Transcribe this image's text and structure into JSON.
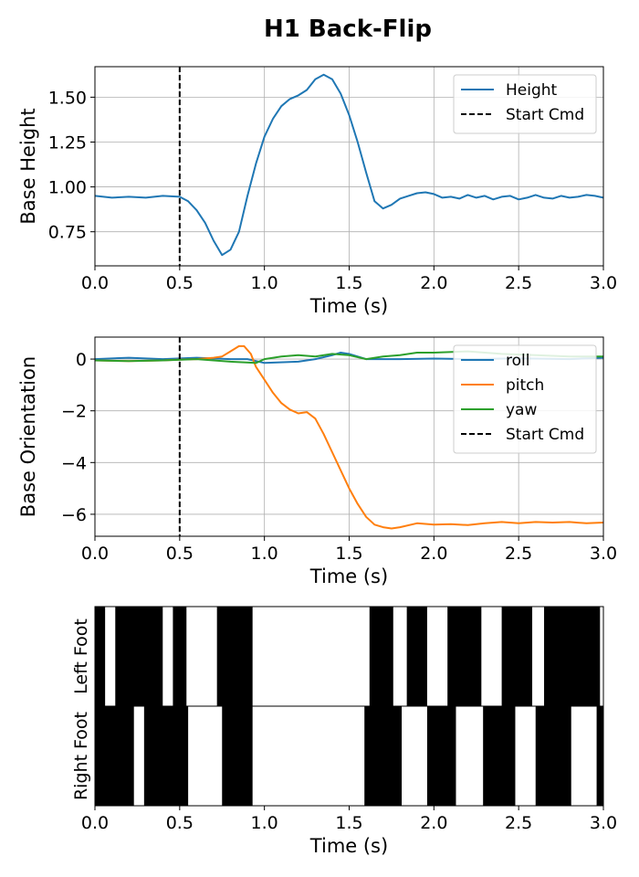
{
  "title": "H1 Back-Flip",
  "chart_data": [
    {
      "type": "line",
      "xlabel": "Time (s)",
      "ylabel": "Base Height",
      "xlim": [
        0,
        3.0
      ],
      "ylim": [
        0.56,
        1.67
      ],
      "xticks": [
        0.0,
        0.5,
        1.0,
        1.5,
        2.0,
        2.5,
        3.0
      ],
      "xtick_labels": [
        "0.0",
        "0.5",
        "1.0",
        "1.5",
        "2.0",
        "2.5",
        "3.0"
      ],
      "yticks": [
        0.75,
        1.0,
        1.25,
        1.5
      ],
      "ytick_labels": [
        "0.75",
        "1.00",
        "1.25",
        "1.50"
      ],
      "grid": true,
      "legend_position": "top-right",
      "series": [
        {
          "name": "Height",
          "color": "#1f77b4",
          "x": [
            0.0,
            0.1,
            0.2,
            0.3,
            0.4,
            0.5,
            0.55,
            0.6,
            0.65,
            0.7,
            0.75,
            0.8,
            0.85,
            0.9,
            0.95,
            1.0,
            1.05,
            1.1,
            1.15,
            1.2,
            1.25,
            1.3,
            1.35,
            1.4,
            1.45,
            1.5,
            1.55,
            1.6,
            1.65,
            1.7,
            1.75,
            1.8,
            1.85,
            1.9,
            1.95,
            2.0,
            2.05,
            2.1,
            2.15,
            2.2,
            2.25,
            2.3,
            2.35,
            2.4,
            2.45,
            2.5,
            2.55,
            2.6,
            2.65,
            2.7,
            2.75,
            2.8,
            2.85,
            2.9,
            2.95,
            3.0
          ],
          "values": [
            0.95,
            0.94,
            0.945,
            0.94,
            0.95,
            0.945,
            0.92,
            0.87,
            0.8,
            0.7,
            0.62,
            0.65,
            0.75,
            0.95,
            1.13,
            1.28,
            1.38,
            1.45,
            1.49,
            1.51,
            1.54,
            1.6,
            1.625,
            1.6,
            1.52,
            1.4,
            1.25,
            1.08,
            0.92,
            0.88,
            0.9,
            0.935,
            0.95,
            0.965,
            0.97,
            0.96,
            0.94,
            0.945,
            0.935,
            0.955,
            0.94,
            0.95,
            0.93,
            0.945,
            0.95,
            0.93,
            0.94,
            0.955,
            0.94,
            0.935,
            0.95,
            0.94,
            0.945,
            0.955,
            0.95,
            0.94
          ]
        },
        {
          "name": "Start Cmd",
          "color": "#000000",
          "style": "dashed-vertical",
          "x_position": 0.5
        }
      ]
    },
    {
      "type": "line",
      "xlabel": "Time (s)",
      "ylabel": "Base Orientation",
      "xlim": [
        0,
        3.0
      ],
      "ylim": [
        -6.85,
        0.85
      ],
      "xticks": [
        0.0,
        0.5,
        1.0,
        1.5,
        2.0,
        2.5,
        3.0
      ],
      "xtick_labels": [
        "0.0",
        "0.5",
        "1.0",
        "1.5",
        "2.0",
        "2.5",
        "3.0"
      ],
      "yticks": [
        -6,
        -4,
        -2,
        0
      ],
      "ytick_labels": [
        "−6",
        "−4",
        "−2",
        "0"
      ],
      "grid": true,
      "legend_position": "top-right",
      "series": [
        {
          "name": "roll",
          "color": "#1f77b4",
          "x": [
            0.0,
            0.2,
            0.4,
            0.6,
            0.8,
            0.9,
            1.0,
            1.2,
            1.3,
            1.4,
            1.45,
            1.5,
            1.6,
            1.8,
            2.0,
            2.2,
            2.5,
            2.8,
            3.0
          ],
          "values": [
            0.0,
            0.05,
            0.0,
            0.05,
            0.0,
            0.0,
            -0.15,
            -0.1,
            0.0,
            0.15,
            0.25,
            0.2,
            0.0,
            0.0,
            0.02,
            0.0,
            0.03,
            0.0,
            0.05
          ]
        },
        {
          "name": "pitch",
          "color": "#ff7f0e",
          "x": [
            0.0,
            0.2,
            0.4,
            0.5,
            0.6,
            0.7,
            0.75,
            0.8,
            0.85,
            0.88,
            0.92,
            0.95,
            1.0,
            1.05,
            1.1,
            1.15,
            1.2,
            1.25,
            1.3,
            1.35,
            1.4,
            1.45,
            1.5,
            1.55,
            1.6,
            1.65,
            1.7,
            1.75,
            1.8,
            1.9,
            2.0,
            2.1,
            2.2,
            2.3,
            2.4,
            2.5,
            2.6,
            2.7,
            2.8,
            2.9,
            3.0
          ],
          "values": [
            -0.05,
            -0.08,
            -0.05,
            -0.02,
            0.0,
            0.05,
            0.1,
            0.3,
            0.5,
            0.5,
            0.2,
            -0.3,
            -0.8,
            -1.3,
            -1.7,
            -1.95,
            -2.1,
            -2.05,
            -2.3,
            -2.9,
            -3.6,
            -4.3,
            -5.0,
            -5.6,
            -6.1,
            -6.4,
            -6.5,
            -6.55,
            -6.5,
            -6.35,
            -6.4,
            -6.38,
            -6.42,
            -6.35,
            -6.3,
            -6.35,
            -6.3,
            -6.32,
            -6.3,
            -6.35,
            -6.32
          ]
        },
        {
          "name": "yaw",
          "color": "#2ca02c",
          "x": [
            0.0,
            0.2,
            0.4,
            0.6,
            0.8,
            0.95,
            1.0,
            1.1,
            1.2,
            1.3,
            1.4,
            1.5,
            1.6,
            1.7,
            1.8,
            1.9,
            2.0,
            2.2,
            2.4,
            2.6,
            2.8,
            3.0
          ],
          "values": [
            -0.05,
            -0.08,
            -0.05,
            0.0,
            -0.1,
            -0.15,
            0.0,
            0.1,
            0.15,
            0.1,
            0.2,
            0.15,
            0.0,
            0.1,
            0.15,
            0.25,
            0.25,
            0.3,
            0.2,
            0.15,
            0.1,
            0.1
          ]
        },
        {
          "name": "Start Cmd",
          "color": "#000000",
          "style": "dashed-vertical",
          "x_position": 0.5
        }
      ]
    },
    {
      "type": "heatmap",
      "description": "contact",
      "xlabel": "Time (s)",
      "xlim": [
        0,
        3.0
      ],
      "xticks": [
        0.0,
        0.5,
        1.0,
        1.5,
        2.0,
        2.5,
        3.0
      ],
      "xtick_labels": [
        "0.0",
        "0.5",
        "1.0",
        "1.5",
        "2.0",
        "2.5",
        "3.0"
      ],
      "rows": [
        {
          "name": "Left Foot",
          "contact_intervals": [
            [
              0.0,
              0.06
            ],
            [
              0.12,
              0.4
            ],
            [
              0.46,
              0.54
            ],
            [
              0.72,
              0.93
            ],
            [
              1.62,
              1.76
            ],
            [
              1.84,
              1.96
            ],
            [
              2.08,
              2.28
            ],
            [
              2.4,
              2.58
            ],
            [
              2.65,
              2.98
            ]
          ]
        },
        {
          "name": "Right Foot",
          "contact_intervals": [
            [
              0.0,
              0.23
            ],
            [
              0.29,
              0.55
            ],
            [
              0.75,
              0.93
            ],
            [
              1.59,
              1.81
            ],
            [
              1.96,
              2.13
            ],
            [
              2.29,
              2.48
            ],
            [
              2.6,
              2.81
            ],
            [
              2.96,
              3.0
            ]
          ]
        }
      ]
    }
  ]
}
